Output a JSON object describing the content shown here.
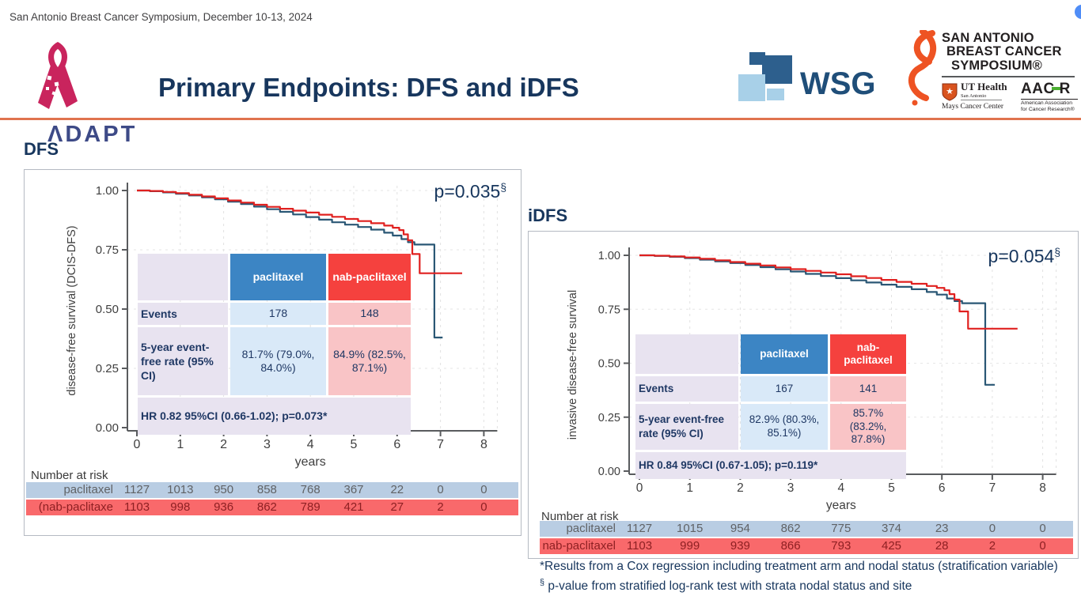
{
  "header": {
    "conference_line": "San Antonio Breast Cancer Symposium, December 10-13, 2024",
    "adapt_text": "ΛDAPT",
    "title": "Primary Endpoints: DFS and iDFS",
    "wsg_text": "WSG",
    "sabcs": {
      "line1": "SAN ANTONIO",
      "line2": "BREAST CANCER",
      "line3": "SYMPOSIUM®"
    },
    "ut_health": {
      "line1": "UT Health",
      "line2": "San Antonio",
      "line3": "Mays Cancer Center"
    },
    "aacr": {
      "part1": "AAC",
      "part2": "R",
      "line2": "American Association",
      "line3": "for Cancer Research®"
    }
  },
  "footnotes": {
    "line1": "*Results from a Cox regression including treatment arm and nodal status (stratification variable)",
    "line2_marker": "§",
    "line2_text": "p-value from stratified log-rank test with strata nodal status and site"
  },
  "chart_data": [
    {
      "type": "line",
      "title": "DFS",
      "xlabel": "years",
      "ylabel": "disease-free survival (DCIS-DFS)",
      "xlim": [
        0,
        8
      ],
      "ylim": [
        0,
        1
      ],
      "xticks": [
        "0",
        "1",
        "2",
        "3",
        "4",
        "5",
        "6",
        "7",
        "8"
      ],
      "yticks": [
        "0.00",
        "0.25",
        "0.50",
        "0.75",
        "1.00"
      ],
      "grid": true,
      "p_value": "p=0.035",
      "p_sup": "§",
      "series": [
        {
          "name": "paclitaxel",
          "color": "#2a5775",
          "points": [
            [
              0,
              1
            ],
            [
              0.3,
              0.997
            ],
            [
              0.6,
              0.992
            ],
            [
              0.9,
              0.986
            ],
            [
              1.2,
              0.979
            ],
            [
              1.5,
              0.971
            ],
            [
              1.8,
              0.963
            ],
            [
              2.1,
              0.953
            ],
            [
              2.4,
              0.943
            ],
            [
              2.7,
              0.932
            ],
            [
              3,
              0.921
            ],
            [
              3.3,
              0.91
            ],
            [
              3.6,
              0.899
            ],
            [
              3.9,
              0.888
            ],
            [
              4.2,
              0.877
            ],
            [
              4.5,
              0.866
            ],
            [
              4.8,
              0.856
            ],
            [
              5.1,
              0.846
            ],
            [
              5.4,
              0.835
            ],
            [
              5.7,
              0.822
            ],
            [
              5.9,
              0.81
            ],
            [
              6.1,
              0.795
            ],
            [
              6.25,
              0.782
            ],
            [
              6.4,
              0.772
            ],
            [
              6.85,
              0.772
            ],
            [
              6.86,
              0.38
            ],
            [
              7.05,
              0.38
            ]
          ]
        },
        {
          "name": "nab-paclitaxel",
          "color": "#e0201f",
          "points": [
            [
              0,
              1
            ],
            [
              0.3,
              0.998
            ],
            [
              0.6,
              0.994
            ],
            [
              0.9,
              0.989
            ],
            [
              1.2,
              0.982
            ],
            [
              1.5,
              0.975
            ],
            [
              1.8,
              0.967
            ],
            [
              2.1,
              0.958
            ],
            [
              2.4,
              0.949
            ],
            [
              2.7,
              0.94
            ],
            [
              3,
              0.931
            ],
            [
              3.3,
              0.923
            ],
            [
              3.6,
              0.915
            ],
            [
              3.9,
              0.907
            ],
            [
              4.2,
              0.898
            ],
            [
              4.5,
              0.889
            ],
            [
              4.8,
              0.88
            ],
            [
              5.1,
              0.871
            ],
            [
              5.4,
              0.862
            ],
            [
              5.7,
              0.852
            ],
            [
              5.9,
              0.843
            ],
            [
              6.05,
              0.833
            ],
            [
              6.15,
              0.815
            ],
            [
              6.25,
              0.79
            ],
            [
              6.35,
              0.732
            ],
            [
              6.5,
              0.732
            ],
            [
              6.52,
              0.651
            ],
            [
              7.5,
              0.651
            ]
          ]
        }
      ],
      "table": {
        "col_headers": [
          "",
          "paclitaxel",
          "nab-paclitaxel"
        ],
        "rows": [
          {
            "label": "Events",
            "values": [
              "178",
              "148"
            ]
          },
          {
            "label": "5-year event-free rate (95% CI)",
            "values": [
              "81.7% (79.0%, 84.0%)",
              "84.9% (82.5%, 87.1%)"
            ]
          }
        ],
        "footer": "HR 0.82 95%CI (0.66-1.02); p=0.073*"
      },
      "number_at_risk": {
        "title": "Number at risk",
        "rows": [
          {
            "label": "paclitaxel",
            "values": [
              "1127",
              "1013",
              "950",
              "858",
              "768",
              "367",
              "22",
              "0",
              "0"
            ]
          },
          {
            "label": "(nab-paclitaxe",
            "values": [
              "1103",
              "998",
              "936",
              "862",
              "789",
              "421",
              "27",
              "2",
              "0"
            ]
          }
        ]
      }
    },
    {
      "type": "line",
      "title": "iDFS",
      "xlabel": "years",
      "ylabel": "invasive disease-free survival",
      "xlim": [
        0,
        8
      ],
      "ylim": [
        0,
        1
      ],
      "xticks": [
        "0",
        "1",
        "2",
        "3",
        "4",
        "5",
        "6",
        "7",
        "8"
      ],
      "yticks": [
        "0.00",
        "0.25",
        "0.50",
        "0.75",
        "1.00"
      ],
      "grid": true,
      "p_value": "p=0.054",
      "p_sup": "§",
      "series": [
        {
          "name": "paclitaxel",
          "color": "#2a5775",
          "points": [
            [
              0,
              1
            ],
            [
              0.3,
              0.997
            ],
            [
              0.6,
              0.993
            ],
            [
              0.9,
              0.987
            ],
            [
              1.2,
              0.98
            ],
            [
              1.5,
              0.972
            ],
            [
              1.8,
              0.964
            ],
            [
              2.1,
              0.955
            ],
            [
              2.4,
              0.945
            ],
            [
              2.7,
              0.935
            ],
            [
              3,
              0.925
            ],
            [
              3.3,
              0.914
            ],
            [
              3.6,
              0.904
            ],
            [
              3.9,
              0.894
            ],
            [
              4.2,
              0.884
            ],
            [
              4.5,
              0.874
            ],
            [
              4.8,
              0.864
            ],
            [
              5.1,
              0.854
            ],
            [
              5.4,
              0.843
            ],
            [
              5.7,
              0.83
            ],
            [
              5.9,
              0.818
            ],
            [
              6.1,
              0.8
            ],
            [
              6.25,
              0.788
            ],
            [
              6.4,
              0.778
            ],
            [
              6.85,
              0.778
            ],
            [
              6.86,
              0.4
            ],
            [
              7.05,
              0.4
            ]
          ]
        },
        {
          "name": "nab-paclitaxel",
          "color": "#e0201f",
          "points": [
            [
              0,
              1
            ],
            [
              0.3,
              0.998
            ],
            [
              0.6,
              0.995
            ],
            [
              0.9,
              0.99
            ],
            [
              1.2,
              0.984
            ],
            [
              1.5,
              0.977
            ],
            [
              1.8,
              0.969
            ],
            [
              2.1,
              0.961
            ],
            [
              2.4,
              0.953
            ],
            [
              2.7,
              0.944
            ],
            [
              3,
              0.936
            ],
            [
              3.3,
              0.928
            ],
            [
              3.6,
              0.92
            ],
            [
              3.9,
              0.912
            ],
            [
              4.2,
              0.903
            ],
            [
              4.5,
              0.895
            ],
            [
              4.8,
              0.886
            ],
            [
              5.1,
              0.877
            ],
            [
              5.4,
              0.868
            ],
            [
              5.7,
              0.858
            ],
            [
              5.9,
              0.849
            ],
            [
              6.05,
              0.838
            ],
            [
              6.15,
              0.82
            ],
            [
              6.25,
              0.795
            ],
            [
              6.35,
              0.74
            ],
            [
              6.5,
              0.74
            ],
            [
              6.52,
              0.66
            ],
            [
              7.5,
              0.66
            ]
          ]
        }
      ],
      "table": {
        "col_headers": [
          "",
          "paclitaxel",
          "nab-paclitaxel"
        ],
        "rows": [
          {
            "label": "Events",
            "values": [
              "167",
              "141"
            ]
          },
          {
            "label": "5-year event-free rate (95% CI)",
            "values": [
              "82.9% (80.3%, 85.1%)",
              "85.7% (83.2%, 87.8%)"
            ]
          }
        ],
        "footer": "HR 0.84 95%CI (0.67-1.05); p=0.119*"
      },
      "number_at_risk": {
        "title": "Number at risk",
        "rows": [
          {
            "label": "paclitaxel",
            "values": [
              "1127",
              "1015",
              "954",
              "862",
              "775",
              "374",
              "23",
              "0",
              "0"
            ]
          },
          {
            "label": "nab-paclitaxel",
            "values": [
              "1103",
              "999",
              "939",
              "866",
              "793",
              "425",
              "28",
              "2",
              "0"
            ]
          }
        ]
      }
    }
  ],
  "colors": {
    "navy": "#17365d",
    "table_navy": "#1f3864",
    "blue_header": "#3c85c4",
    "red_header": "#f5413e",
    "light_blue_cell": "#d9e9f8",
    "light_pink_cell": "#f9c4c6",
    "lavender_cell": "#e8e3f0",
    "risk_blue_band": "#b9cde3",
    "risk_red_band": "#f9696b",
    "curve_blue": "#2a5775",
    "curve_red": "#e0201f",
    "accent_orange": "#e0734e"
  }
}
